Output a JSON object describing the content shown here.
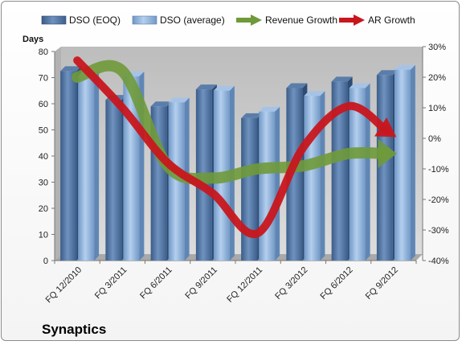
{
  "chart_data": {
    "type": "bar",
    "company": "Synaptics",
    "y_axis_title": "Days",
    "categories": [
      "FQ 12/2010",
      "FQ 3/2011",
      "FQ 6/2011",
      "FQ 9/2011",
      "FQ 12/2011",
      "FQ 3/2012",
      "FQ 6/2012",
      "FQ 9/2012"
    ],
    "ylim": [
      0,
      80
    ],
    "yticks": [
      0,
      10,
      20,
      30,
      40,
      50,
      60,
      70,
      80
    ],
    "y2lim": [
      -40,
      30
    ],
    "y2ticks": [
      "-40%",
      "-30%",
      "-20%",
      "-10%",
      "0%",
      "10%",
      "20%",
      "30%"
    ],
    "y2values": [
      -40,
      -30,
      -20,
      -10,
      0,
      10,
      20,
      30
    ],
    "series": [
      {
        "name": "DSO (EOQ)",
        "type": "bar",
        "axis": "left",
        "values": [
          72.5,
          61.5,
          59,
          65.5,
          54.5,
          66,
          68.5,
          71
        ]
      },
      {
        "name": "DSO (average)",
        "type": "bar",
        "axis": "left",
        "values": [
          70.5,
          70.5,
          60.5,
          65,
          57,
          63,
          66,
          73
        ]
      },
      {
        "name": "Revenue Growth",
        "type": "line-arrow",
        "axis": "right",
        "values": [
          20,
          22,
          -9,
          -13,
          -10,
          -9,
          -5,
          -5
        ]
      },
      {
        "name": "AR Growth",
        "type": "line-arrow",
        "axis": "right",
        "values": [
          25.5,
          10,
          -8,
          -18,
          -31,
          -3,
          10.5,
          1
        ]
      }
    ],
    "legend_position": "top",
    "grid": false,
    "colors": {
      "dso_eoq": "#4a6e9c",
      "dso_average": "#8fb2da",
      "revenue_growth": "#6f9a3a",
      "ar_growth": "#c8161d",
      "plot_background": "#c0c0c0"
    }
  }
}
